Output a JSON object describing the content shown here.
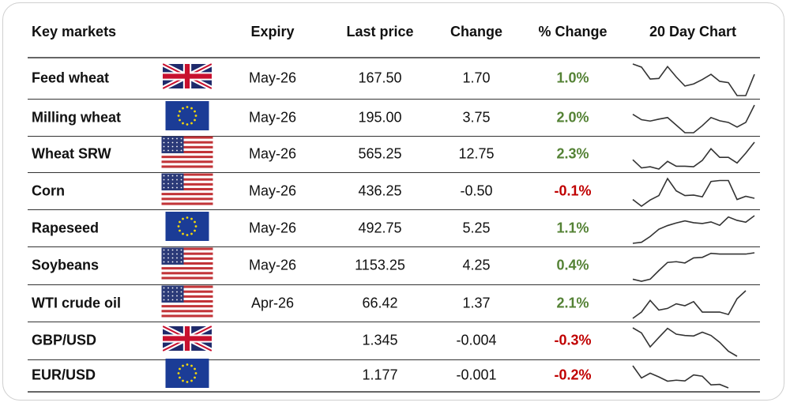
{
  "headers": {
    "market": "Key markets",
    "expiry": "Expiry",
    "last": "Last price",
    "change": "Change",
    "pct": "% Change",
    "chart": "20 Day Chart"
  },
  "colors": {
    "positive": "#548235",
    "negative": "#c00000",
    "text": "#111111"
  },
  "rows": [
    {
      "name": "Feed wheat",
      "flag": "uk-flag",
      "expiry": "May-26",
      "last": "167.50",
      "change": "1.70",
      "pct": "1.0%",
      "direction": "up",
      "spark": [
        132,
        120,
        74,
        76,
        122,
        82,
        47,
        55,
        72,
        92,
        65,
        60,
        10,
        10,
        92
      ]
    },
    {
      "name": "Milling wheat",
      "flag": "eu-flag",
      "expiry": "May-26",
      "last": "195.00",
      "change": "3.75",
      "pct": "2.0%",
      "direction": "up",
      "spark": [
        84,
        64,
        59,
        66,
        72,
        44,
        16,
        16,
        42,
        72,
        60,
        54,
        37,
        54,
        118
      ]
    },
    {
      "name": "Wheat SRW",
      "flag": "us-flag",
      "expiry": "May-26",
      "last": "565.25",
      "change": "12.75",
      "pct": "2.3%",
      "direction": "up",
      "spark": [
        60,
        25,
        30,
        20,
        53,
        32,
        32,
        30,
        57,
        107,
        70,
        70,
        46,
        88,
        135
      ]
    },
    {
      "name": "Corn",
      "flag": "us-flag",
      "expiry": "May-26",
      "last": "436.25",
      "change": "-0.50",
      "pct": "-0.1%",
      "direction": "down",
      "spark": [
        47,
        20,
        45,
        63,
        132,
        82,
        63,
        65,
        58,
        120,
        124,
        124,
        47,
        60,
        52
      ]
    },
    {
      "name": "Rapeseed",
      "flag": "eu-flag",
      "expiry": "May-26",
      "last": "492.75",
      "change": "5.25",
      "pct": "1.1%",
      "direction": "up",
      "spark": [
        24,
        28,
        50,
        78,
        92,
        102,
        110,
        103,
        100,
        106,
        93,
        125,
        112,
        105,
        130
      ]
    },
    {
      "name": "Soybeans",
      "flag": "us-flag",
      "expiry": "May-26",
      "last": "1153.25",
      "change": "4.25",
      "pct": "0.4%",
      "direction": "up",
      "spark": [
        18,
        10,
        18,
        52,
        84,
        87,
        82,
        102,
        104,
        120,
        117,
        117,
        117,
        117,
        122
      ]
    },
    {
      "name": "WTI crude oil",
      "flag": "us-flag",
      "expiry": "Apr-26",
      "last": "66.42",
      "change": "1.37",
      "pct": "2.1%",
      "direction": "up",
      "spark": [
        14,
        40,
        88,
        48,
        55,
        74,
        66,
        83,
        40,
        40,
        40,
        30,
        95,
        128
      ]
    },
    {
      "name": "GBP/USD",
      "flag": "uk-flag",
      "expiry": "",
      "last": "1.345",
      "change": "-0.004",
      "pct": "-0.3%",
      "direction": "down",
      "spark": [
        122,
        102,
        47,
        84,
        120,
        97,
        92,
        90,
        105,
        92,
        65,
        30,
        10
      ]
    },
    {
      "name": "EUR/USD",
      "flag": "eu-flag",
      "expiry": "",
      "last": "1.177",
      "change": "-0.001",
      "pct": "-0.2%",
      "direction": "down",
      "spark": [
        97,
        48,
        67,
        52,
        35,
        39,
        36,
        60,
        55,
        20,
        22,
        8
      ]
    }
  ]
}
